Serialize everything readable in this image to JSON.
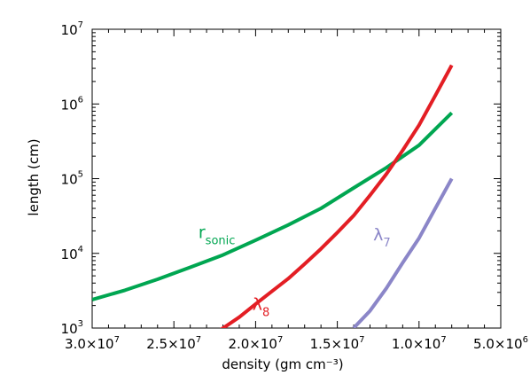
{
  "chart_data": {
    "type": "line",
    "xlabel": "density (gm cm⁻³)",
    "ylabel": "length (cm)",
    "xlim": [
      30000000,
      5000000
    ],
    "xscale": "linear-reversed",
    "ylim": [
      1000,
      10000000
    ],
    "yscale": "log",
    "grid": false,
    "x_ticks": [
      {
        "value": 30000000,
        "mant": "3.0×10",
        "exp": "7"
      },
      {
        "value": 25000000,
        "mant": "2.5×10",
        "exp": "7"
      },
      {
        "value": 20000000,
        "mant": "2.0×10",
        "exp": "7"
      },
      {
        "value": 15000000,
        "mant": "1.5×10",
        "exp": "7"
      },
      {
        "value": 10000000,
        "mant": "1.0×10",
        "exp": "7"
      },
      {
        "value": 5000000,
        "mant": "5.0×10",
        "exp": "6"
      }
    ],
    "y_ticks": [
      {
        "value": 1000,
        "mant": "10",
        "exp": "3"
      },
      {
        "value": 10000,
        "mant": "10",
        "exp": "4"
      },
      {
        "value": 100000,
        "mant": "10",
        "exp": "5"
      },
      {
        "value": 1000000,
        "mant": "10",
        "exp": "6"
      },
      {
        "value": 10000000,
        "mant": "10",
        "exp": "7"
      }
    ],
    "series": [
      {
        "name": "r",
        "sub": "sonic",
        "color": "#00a651",
        "label_x": 23500000,
        "label_y": 16000,
        "points": [
          [
            30000000,
            2400
          ],
          [
            28000000,
            3200
          ],
          [
            26000000,
            4500
          ],
          [
            24000000,
            6500
          ],
          [
            22000000,
            9500
          ],
          [
            20000000,
            15000
          ],
          [
            18000000,
            24000
          ],
          [
            16000000,
            40000
          ],
          [
            14000000,
            75000
          ],
          [
            12000000,
            140000
          ],
          [
            10000000,
            280000
          ],
          [
            8000000,
            760000
          ]
        ]
      },
      {
        "name": "λ",
        "sub": "8",
        "color": "#e31e24",
        "label_x": 20200000,
        "label_y": 1750,
        "points": [
          [
            22300000,
            900
          ],
          [
            21000000,
            1400
          ],
          [
            20000000,
            2100
          ],
          [
            19000000,
            3100
          ],
          [
            18000000,
            4600
          ],
          [
            17000000,
            7200
          ],
          [
            16000000,
            11500
          ],
          [
            15000000,
            19000
          ],
          [
            14000000,
            32000
          ],
          [
            13000000,
            60000
          ],
          [
            12000000,
            115000
          ],
          [
            11000000,
            240000
          ],
          [
            10000000,
            520000
          ],
          [
            9000000,
            1300000
          ],
          [
            8000000,
            3300000
          ]
        ]
      },
      {
        "name": "λ",
        "sub": "7",
        "color": "#8b86c8",
        "label_x": 12800000,
        "label_y": 15000,
        "points": [
          [
            14000000,
            1000
          ],
          [
            13000000,
            1700
          ],
          [
            12000000,
            3400
          ],
          [
            11000000,
            7500
          ],
          [
            10000000,
            16000
          ],
          [
            9000000,
            40000
          ],
          [
            8000000,
            100000
          ]
        ]
      }
    ]
  }
}
